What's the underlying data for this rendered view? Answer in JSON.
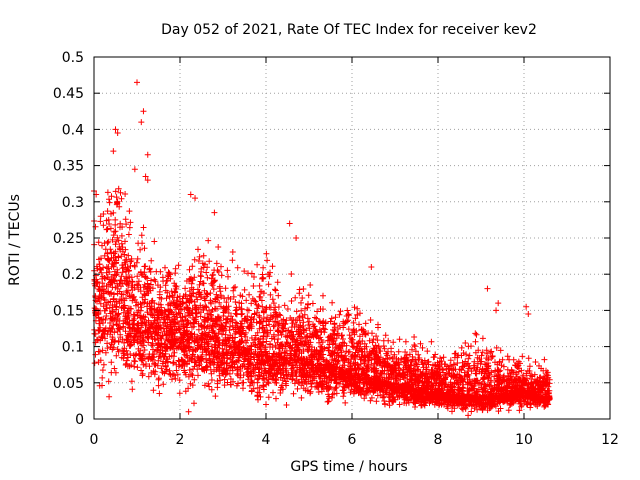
{
  "chart_data": {
    "type": "scatter",
    "title": "Day 052 of 2021, Rate Of TEC Index for receiver kev2",
    "xlabel": "GPS time / hours",
    "ylabel": "ROTI / TECUs",
    "xlim": [
      0,
      12
    ],
    "ylim": [
      0,
      0.5
    ],
    "x_ticks": [
      0,
      2,
      4,
      6,
      8,
      10,
      12
    ],
    "y_ticks": [
      0,
      0.05,
      0.1,
      0.15,
      0.2,
      0.25,
      0.3,
      0.35,
      0.4,
      0.45,
      0.5
    ],
    "x_tick_labels": [
      "0",
      "2",
      "4",
      "6",
      "8",
      "10",
      "12"
    ],
    "y_tick_labels": [
      "0",
      "0.05",
      "0.1",
      "0.15",
      "0.2",
      "0.25",
      "0.3",
      "0.35",
      "0.4",
      "0.45",
      "0.5"
    ],
    "grid": true,
    "marker": "+",
    "marker_color": "#ff0000",
    "series": [
      {
        "name": "ROTI",
        "envelope": {
          "x": [
            0,
            0.5,
            1.0,
            1.5,
            2.0,
            2.5,
            3.0,
            4.0,
            5.0,
            6.0,
            7.0,
            8.0,
            9.0,
            10.0,
            10.6
          ],
          "center": [
            0.15,
            0.17,
            0.14,
            0.12,
            0.12,
            0.12,
            0.11,
            0.09,
            0.08,
            0.065,
            0.05,
            0.035,
            0.03,
            0.04,
            0.03
          ],
          "upper": [
            0.32,
            0.4,
            0.3,
            0.25,
            0.22,
            0.3,
            0.25,
            0.25,
            0.2,
            0.18,
            0.12,
            0.11,
            0.13,
            0.1,
            0.08
          ],
          "lower": [
            0.02,
            0.02,
            0.02,
            0.02,
            0.01,
            0.01,
            0.015,
            0.015,
            0.015,
            0.015,
            0.01,
            0.01,
            0.005,
            0.01,
            0.01
          ]
        },
        "highlight_points": [
          {
            "x": 1.0,
            "y": 0.465
          },
          {
            "x": 1.15,
            "y": 0.425
          },
          {
            "x": 1.1,
            "y": 0.41
          },
          {
            "x": 0.5,
            "y": 0.4
          },
          {
            "x": 0.55,
            "y": 0.395
          },
          {
            "x": 0.45,
            "y": 0.37
          },
          {
            "x": 1.25,
            "y": 0.365
          },
          {
            "x": 1.2,
            "y": 0.335
          },
          {
            "x": 1.25,
            "y": 0.33
          },
          {
            "x": 0.95,
            "y": 0.345
          },
          {
            "x": 0.0,
            "y": 0.315
          },
          {
            "x": 0.05,
            "y": 0.31
          },
          {
            "x": 2.25,
            "y": 0.31
          },
          {
            "x": 2.35,
            "y": 0.305
          },
          {
            "x": 2.8,
            "y": 0.285
          },
          {
            "x": 4.55,
            "y": 0.27
          },
          {
            "x": 4.7,
            "y": 0.25
          },
          {
            "x": 6.45,
            "y": 0.21
          },
          {
            "x": 9.15,
            "y": 0.18
          },
          {
            "x": 9.4,
            "y": 0.16
          },
          {
            "x": 9.35,
            "y": 0.15
          },
          {
            "x": 10.05,
            "y": 0.155
          },
          {
            "x": 10.1,
            "y": 0.145
          },
          {
            "x": 2.2,
            "y": 0.01
          },
          {
            "x": 8.7,
            "y": 0.005
          },
          {
            "x": 4.0,
            "y": 0.02
          }
        ]
      }
    ]
  }
}
